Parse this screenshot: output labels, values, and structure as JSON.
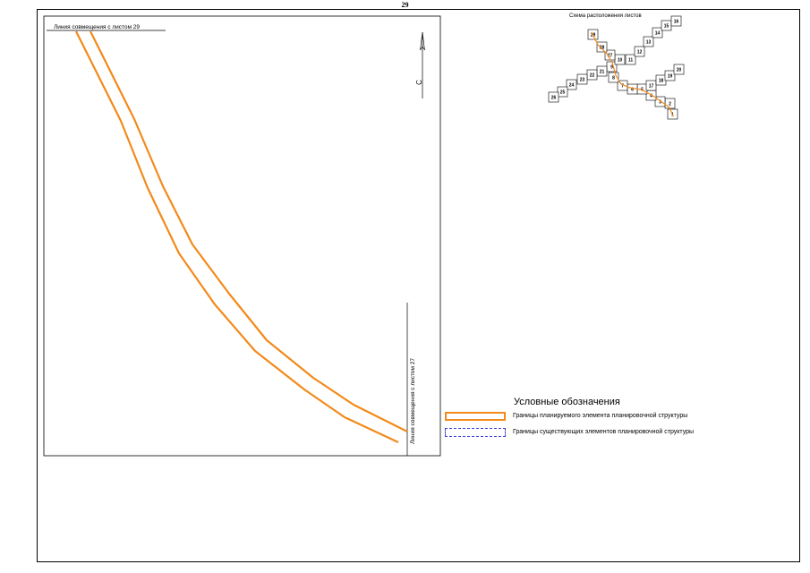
{
  "page_number": "29",
  "match_lines": {
    "top": "Линия совмещения с листом 29",
    "right": "Линия совмещения с листом 27"
  },
  "north_arrow": {
    "label": "С"
  },
  "sheet_index": {
    "title": "Схема расположения листов",
    "sheets": [
      "1",
      "2",
      "3",
      "4",
      "5",
      "6",
      "7",
      "8",
      "9",
      "10",
      "11",
      "12",
      "13",
      "14",
      "15",
      "16",
      "17",
      "18",
      "19",
      "20",
      "21",
      "22",
      "23",
      "24",
      "25",
      "26",
      "27",
      "28",
      "29"
    ]
  },
  "legend": {
    "title": "Условные обозначения",
    "items": [
      {
        "label": "Границы планируемого элемента планировочной структуры",
        "color": "#f28a1b",
        "style": "solid"
      },
      {
        "label": "Границы существующих элементов планировочной структуры",
        "color": "#3b3bd6",
        "style": "dashed"
      }
    ]
  },
  "colors": {
    "boundary": "#f28a1b",
    "existing": "#3b3bd6",
    "ink": "#000000"
  }
}
